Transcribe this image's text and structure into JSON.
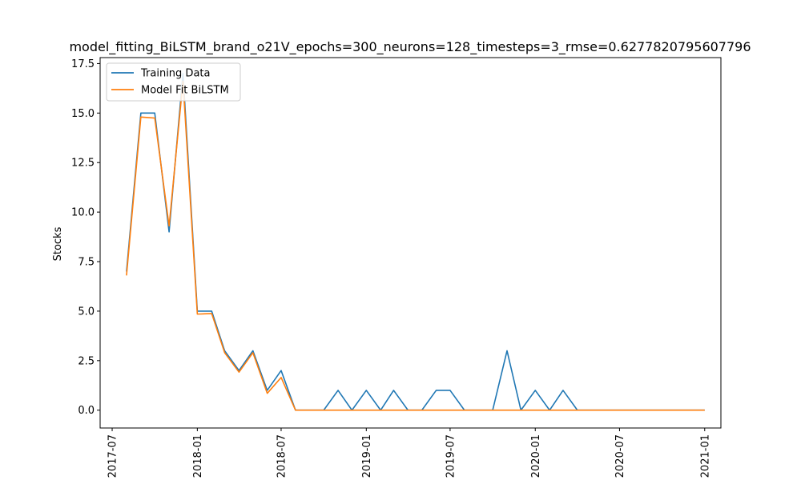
{
  "chart_data": {
    "type": "line",
    "title": "model_fitting_BiLSTM_brand_o21V_epochs=300_neurons=128_timesteps=3_rmse=0.6277820795607796",
    "xlabel": "",
    "ylabel": "Stocks",
    "xlim": [
      "2017-06-05",
      "2021-02-05"
    ],
    "ylim": [
      -0.9,
      17.8
    ],
    "grid": false,
    "legend_position": "top-left",
    "x_ticks": [
      "2017-07",
      "2018-01",
      "2018-07",
      "2019-01",
      "2019-07",
      "2020-01",
      "2020-07",
      "2021-01"
    ],
    "x_tick_dates": [
      "2017-07-01",
      "2018-01-01",
      "2018-07-01",
      "2019-01-01",
      "2019-07-01",
      "2020-01-01",
      "2020-07-01",
      "2021-01-01"
    ],
    "y_ticks": [
      0.0,
      2.5,
      5.0,
      7.5,
      10.0,
      12.5,
      15.0,
      17.5
    ],
    "y_tick_labels": [
      "0.0",
      "2.5",
      "5.0",
      "7.5",
      "10.0",
      "12.5",
      "15.0",
      "17.5"
    ],
    "x": [
      "2017-08-01",
      "2017-09-01",
      "2017-10-01",
      "2017-11-01",
      "2017-12-01",
      "2018-01-01",
      "2018-02-01",
      "2018-03-01",
      "2018-04-01",
      "2018-05-01",
      "2018-06-01",
      "2018-07-01",
      "2018-08-01",
      "2018-09-01",
      "2018-10-01",
      "2018-11-01",
      "2018-12-01",
      "2019-01-01",
      "2019-02-01",
      "2019-03-01",
      "2019-04-01",
      "2019-05-01",
      "2019-06-01",
      "2019-07-01",
      "2019-08-01",
      "2019-09-01",
      "2019-10-01",
      "2019-11-01",
      "2019-12-01",
      "2020-01-01",
      "2020-02-01",
      "2020-03-01",
      "2020-04-01",
      "2020-05-01",
      "2020-06-01",
      "2020-07-01",
      "2020-08-01",
      "2020-09-01",
      "2020-10-01",
      "2020-11-01",
      "2020-12-01",
      "2021-01-01"
    ],
    "series": [
      {
        "name": "Training Data",
        "color": "#1f77b4",
        "values": [
          7,
          15,
          15,
          9,
          17,
          5,
          5,
          3,
          2,
          3,
          1,
          2,
          0,
          0,
          0,
          1,
          0,
          1,
          0,
          1,
          0,
          0,
          1,
          1,
          0,
          0,
          0,
          3,
          0,
          1,
          0,
          1,
          0,
          0,
          0,
          0,
          0,
          0,
          0,
          0,
          0,
          0
        ]
      },
      {
        "name": "Model Fit BiLSTM",
        "color": "#ff7f0e",
        "values": [
          6.8,
          14.8,
          14.75,
          9.3,
          16.6,
          4.85,
          4.88,
          2.9,
          1.92,
          2.9,
          0.85,
          1.65,
          0,
          0,
          0,
          0,
          0,
          0,
          0,
          0,
          0,
          0,
          0,
          0,
          0,
          0,
          0,
          0,
          0,
          0,
          0,
          0,
          0,
          0,
          0,
          0,
          0,
          0,
          0,
          0,
          0,
          0
        ]
      }
    ]
  }
}
